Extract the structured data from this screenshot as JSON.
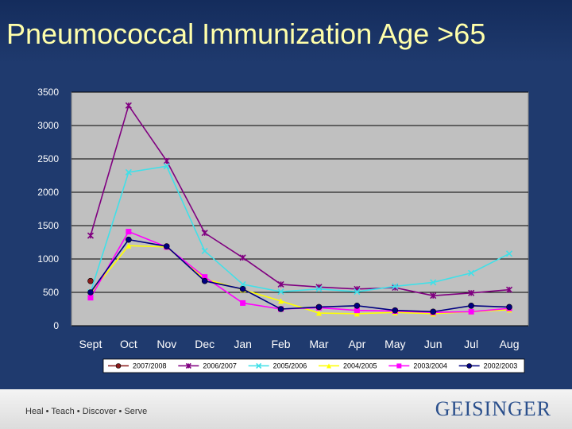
{
  "slide": {
    "title": "Pneumococcal Immunization Age >65",
    "tagline": "Heal • Teach • Discover • Serve",
    "logo_text": "GEISINGER",
    "background": "#1f3a6e",
    "title_color": "#ffffaa"
  },
  "chart_data": {
    "type": "line",
    "title": "",
    "xlabel": "",
    "ylabel": "",
    "categories": [
      "Sept",
      "Oct",
      "Nov",
      "Dec",
      "Jan",
      "Feb",
      "Mar",
      "Apr",
      "May",
      "Jun",
      "Jul",
      "Aug"
    ],
    "ylim": [
      0,
      3500
    ],
    "yticks": [
      0,
      500,
      1000,
      1500,
      2000,
      2500,
      3000,
      3500
    ],
    "grid": true,
    "plot_background": "#c0c0c0",
    "legend_position": "bottom",
    "series": [
      {
        "name": "2007/2008",
        "color": "#8b1a1a",
        "marker": "circle",
        "values": [
          670,
          null,
          null,
          null,
          null,
          null,
          null,
          null,
          null,
          null,
          null,
          null
        ]
      },
      {
        "name": "2006/2007",
        "color": "#800080",
        "marker": "star",
        "values": [
          1350,
          3300,
          2470,
          1390,
          1020,
          620,
          580,
          550,
          570,
          450,
          490,
          540
        ]
      },
      {
        "name": "2005/2006",
        "color": "#40e0e8",
        "marker": "x",
        "values": [
          500,
          2300,
          2390,
          1120,
          620,
          510,
          550,
          510,
          590,
          650,
          790,
          1080
        ]
      },
      {
        "name": "2004/2005",
        "color": "#ffff00",
        "marker": "triangle",
        "values": [
          490,
          1200,
          1180,
          700,
          540,
          370,
          190,
          180,
          200,
          180,
          210,
          240
        ]
      },
      {
        "name": "2003/2004",
        "color": "#ff00ff",
        "marker": "square",
        "values": [
          420,
          1410,
          1180,
          730,
          340,
          250,
          270,
          230,
          220,
          200,
          210,
          260
        ]
      },
      {
        "name": "2002/2003",
        "color": "#000080",
        "marker": "circle",
        "values": [
          500,
          1290,
          1190,
          670,
          550,
          250,
          280,
          300,
          230,
          210,
          300,
          280
        ]
      }
    ]
  }
}
